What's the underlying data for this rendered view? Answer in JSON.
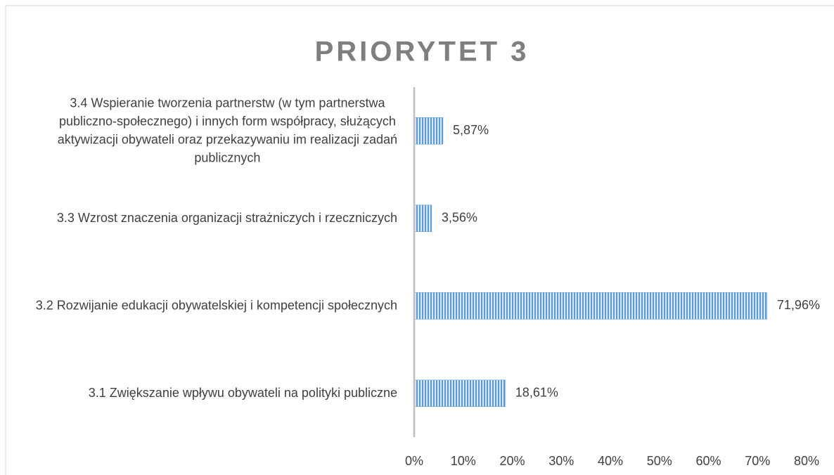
{
  "chart_data": {
    "type": "bar",
    "orientation": "horizontal",
    "title": "PRIORYTET 3",
    "categories": [
      "3.4 Wspieranie tworzenia partnerstw (w tym partnerstwa publiczno-społecznego) i innych form współpracy, służących aktywizacji obywateli oraz przekazywaniu im realizacji zadań publicznych",
      "3.3 Wzrost znaczenia organizacji strażniczych i rzeczniczych",
      "3.2 Rozwijanie edukacji obywatelskiej i kompetencji społecznych",
      "3.1 Zwiększanie wpływu obywateli na polityki publiczne"
    ],
    "values": [
      5.87,
      3.56,
      71.96,
      18.61
    ],
    "value_labels": [
      "5,87%",
      "3,56%",
      "71,96%",
      "18,61%"
    ],
    "color": "#5b9bd5",
    "xlim": [
      0,
      80
    ],
    "xticks": [
      {
        "value": 0,
        "label": "0%"
      },
      {
        "value": 10,
        "label": "10%"
      },
      {
        "value": 20,
        "label": "20%"
      },
      {
        "value": 30,
        "label": "30%"
      },
      {
        "value": 40,
        "label": "40%"
      },
      {
        "value": 50,
        "label": "50%"
      },
      {
        "value": 60,
        "label": "60%"
      },
      {
        "value": 70,
        "label": "70%"
      },
      {
        "value": 80,
        "label": "80%"
      }
    ],
    "grid": false
  }
}
